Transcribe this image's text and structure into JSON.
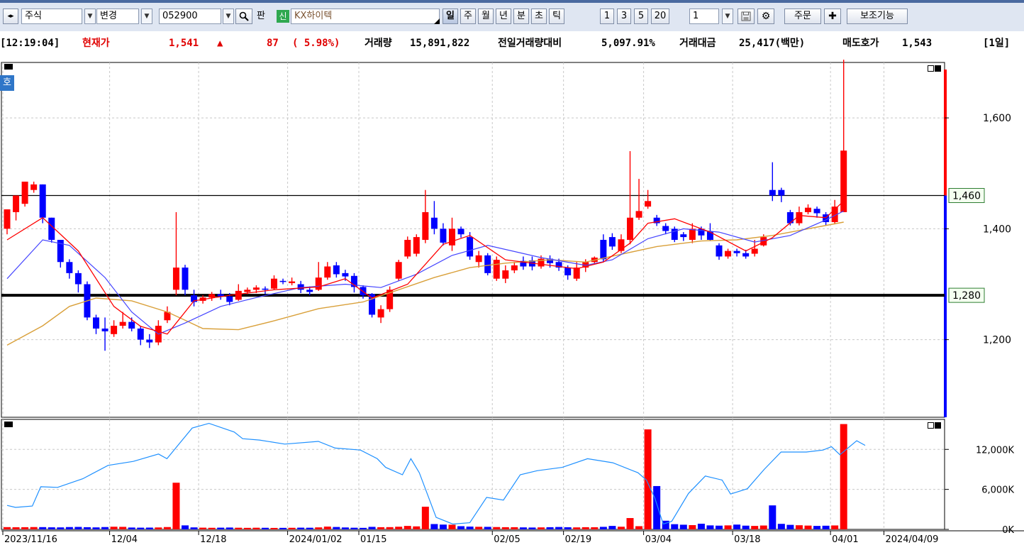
{
  "toolbar": {
    "market_type": "주식",
    "change_label": "변경",
    "stock_code": "052900",
    "pan_label": "판",
    "new_badge": "신",
    "stock_name": "KX하이텍",
    "periods": [
      "일",
      "주",
      "월",
      "년",
      "분",
      "초",
      "틱"
    ],
    "selected_period": "일",
    "intervals": [
      "1",
      "3",
      "5",
      "20"
    ],
    "interval_value": "1",
    "order_label": "주문",
    "aux_label": "보조기능"
  },
  "quote": {
    "time": "[12:19:04]",
    "price_label": "현재가",
    "price": "1,541",
    "arrow": "▲",
    "change": "87",
    "change_pct": "( 5.98%)",
    "volume_label": "거래량",
    "volume": "15,891,822",
    "vol_ratio_label": "전일거래량대비",
    "vol_ratio": "5,097.91%",
    "amount_label": "거래대금",
    "amount": "25,417(백만)",
    "ask_label": "매도호가",
    "ask": "1,543",
    "period_badge": "[1일]"
  },
  "colors": {
    "up": "#ff0000",
    "down": "#0000ff",
    "ma5": "#ff0000",
    "ma10": "#4444ff",
    "ma20": "#d9a03a",
    "vol_ma": "#1e90ff"
  },
  "chart_data": {
    "type": "candlestick",
    "badge": "호",
    "price_axis": {
      "ticks": [
        "1,600",
        "1,400",
        "1,200"
      ],
      "tick_values": [
        1600,
        1400,
        1200
      ],
      "range": [
        1060,
        1700
      ]
    },
    "hlines": [
      {
        "value": 1460,
        "label": "1,460"
      },
      {
        "value": 1280,
        "label": "1,280"
      }
    ],
    "candles": [
      [
        1400,
        1435,
        1435,
        1390
      ],
      [
        1430,
        1460,
        1460,
        1415
      ],
      [
        1445,
        1485,
        1485,
        1440
      ],
      [
        1470,
        1480,
        1485,
        1465
      ],
      [
        1480,
        1420,
        1480,
        1410
      ],
      [
        1420,
        1380,
        1420,
        1375
      ],
      [
        1380,
        1340,
        1380,
        1330
      ],
      [
        1340,
        1320,
        1345,
        1310
      ],
      [
        1320,
        1300,
        1325,
        1285
      ],
      [
        1300,
        1240,
        1305,
        1235
      ],
      [
        1240,
        1220,
        1245,
        1210
      ],
      [
        1220,
        1215,
        1240,
        1180
      ],
      [
        1210,
        1225,
        1235,
        1205
      ],
      [
        1225,
        1232,
        1250,
        1220
      ],
      [
        1232,
        1220,
        1240,
        1215
      ],
      [
        1220,
        1200,
        1225,
        1190
      ],
      [
        1200,
        1195,
        1210,
        1185
      ],
      [
        1195,
        1225,
        1235,
        1190
      ],
      [
        1235,
        1250,
        1260,
        1230
      ],
      [
        1290,
        1330,
        1430,
        1280
      ],
      [
        1330,
        1290,
        1335,
        1280
      ],
      [
        1280,
        1268,
        1290,
        1260
      ],
      [
        1270,
        1276,
        1280,
        1265
      ],
      [
        1276,
        1282,
        1286,
        1270
      ],
      [
        1282,
        1278,
        1290,
        1272
      ],
      [
        1278,
        1268,
        1284,
        1262
      ],
      [
        1272,
        1288,
        1300,
        1270
      ],
      [
        1286,
        1290,
        1294,
        1282
      ],
      [
        1290,
        1294,
        1298,
        1284
      ],
      [
        1292,
        1290,
        1296,
        1282
      ],
      [
        1292,
        1310,
        1316,
        1290
      ],
      [
        1306,
        1304,
        1310,
        1300
      ],
      [
        1302,
        1305,
        1312,
        1298
      ],
      [
        1300,
        1290,
        1306,
        1284
      ],
      [
        1290,
        1286,
        1296,
        1280
      ],
      [
        1290,
        1312,
        1340,
        1288
      ],
      [
        1312,
        1332,
        1340,
        1308
      ],
      [
        1334,
        1318,
        1340,
        1312
      ],
      [
        1320,
        1314,
        1326,
        1306
      ],
      [
        1315,
        1295,
        1320,
        1285
      ],
      [
        1295,
        1280,
        1298,
        1274
      ],
      [
        1282,
        1245,
        1284,
        1240
      ],
      [
        1240,
        1255,
        1262,
        1230
      ],
      [
        1255,
        1290,
        1296,
        1250
      ],
      [
        1310,
        1340,
        1344,
        1306
      ],
      [
        1350,
        1380,
        1386,
        1346
      ],
      [
        1355,
        1385,
        1390,
        1350
      ],
      [
        1380,
        1430,
        1470,
        1374
      ],
      [
        1420,
        1400,
        1450,
        1390
      ],
      [
        1400,
        1375,
        1410,
        1370
      ],
      [
        1370,
        1400,
        1420,
        1360
      ],
      [
        1400,
        1390,
        1404,
        1384
      ],
      [
        1385,
        1350,
        1394,
        1344
      ],
      [
        1340,
        1352,
        1360,
        1330
      ],
      [
        1352,
        1320,
        1356,
        1316
      ],
      [
        1310,
        1344,
        1350,
        1306
      ],
      [
        1310,
        1325,
        1334,
        1302
      ],
      [
        1325,
        1334,
        1340,
        1320
      ],
      [
        1342,
        1332,
        1350,
        1326
      ],
      [
        1343,
        1332,
        1350,
        1325
      ],
      [
        1332,
        1346,
        1352,
        1328
      ],
      [
        1346,
        1338,
        1352,
        1330
      ],
      [
        1340,
        1330,
        1346,
        1324
      ],
      [
        1330,
        1316,
        1334,
        1308
      ],
      [
        1310,
        1330,
        1340,
        1306
      ],
      [
        1330,
        1340,
        1345,
        1322
      ],
      [
        1340,
        1348,
        1350,
        1336
      ],
      [
        1380,
        1345,
        1390,
        1340
      ],
      [
        1385,
        1368,
        1392,
        1362
      ],
      [
        1360,
        1381,
        1390,
        1356
      ],
      [
        1380,
        1420,
        1540,
        1372
      ],
      [
        1420,
        1432,
        1490,
        1416
      ],
      [
        1440,
        1450,
        1470,
        1436
      ],
      [
        1420,
        1410,
        1425,
        1405
      ],
      [
        1405,
        1396,
        1410,
        1390
      ],
      [
        1400,
        1380,
        1404,
        1376
      ],
      [
        1390,
        1385,
        1394,
        1378
      ],
      [
        1380,
        1400,
        1410,
        1374
      ],
      [
        1400,
        1388,
        1404,
        1380
      ],
      [
        1395,
        1380,
        1410,
        1378
      ],
      [
        1370,
        1350,
        1374,
        1344
      ],
      [
        1350,
        1360,
        1364,
        1346
      ],
      [
        1360,
        1356,
        1364,
        1350
      ],
      [
        1356,
        1350,
        1362,
        1346
      ],
      [
        1355,
        1364,
        1380,
        1350
      ],
      [
        1370,
        1385,
        1390,
        1368
      ],
      [
        1470,
        1460,
        1520,
        1450
      ],
      [
        1470,
        1460,
        1474,
        1448
      ],
      [
        1430,
        1410,
        1434,
        1406
      ],
      [
        1410,
        1430,
        1440,
        1406
      ],
      [
        1430,
        1438,
        1444,
        1426
      ],
      [
        1436,
        1428,
        1440,
        1420
      ],
      [
        1426,
        1412,
        1430,
        1406
      ],
      [
        1412,
        1440,
        1452,
        1408
      ],
      [
        1430,
        1541,
        1705,
        1455
      ]
    ],
    "ma_lines": {
      "ma5": [
        [
          0,
          1380
        ],
        [
          4,
          1420
        ],
        [
          8,
          1360
        ],
        [
          12,
          1260
        ],
        [
          15,
          1224
        ],
        [
          18,
          1210
        ],
        [
          21,
          1270
        ],
        [
          25,
          1280
        ],
        [
          30,
          1290
        ],
        [
          35,
          1295
        ],
        [
          38,
          1310
        ],
        [
          41,
          1275
        ],
        [
          45,
          1300
        ],
        [
          49,
          1372
        ],
        [
          52,
          1388
        ],
        [
          56,
          1344
        ],
        [
          60,
          1336
        ],
        [
          64,
          1328
        ],
        [
          67,
          1340
        ],
        [
          70,
          1374
        ],
        [
          72,
          1410
        ],
        [
          75,
          1418
        ],
        [
          79,
          1394
        ],
        [
          83,
          1360
        ],
        [
          86,
          1384
        ],
        [
          89,
          1424
        ],
        [
          92,
          1420
        ],
        [
          94,
          1450
        ]
      ],
      "ma10": [
        [
          0,
          1310
        ],
        [
          4,
          1380
        ],
        [
          7,
          1370
        ],
        [
          11,
          1312
        ],
        [
          14,
          1250
        ],
        [
          17,
          1210
        ],
        [
          20,
          1230
        ],
        [
          24,
          1260
        ],
        [
          28,
          1276
        ],
        [
          33,
          1294
        ],
        [
          38,
          1300
        ],
        [
          42,
          1294
        ],
        [
          46,
          1318
        ],
        [
          50,
          1352
        ],
        [
          54,
          1370
        ],
        [
          60,
          1348
        ],
        [
          65,
          1334
        ],
        [
          68,
          1344
        ],
        [
          72,
          1382
        ],
        [
          76,
          1400
        ],
        [
          80,
          1394
        ],
        [
          84,
          1376
        ],
        [
          88,
          1388
        ],
        [
          92,
          1416
        ],
        [
          94,
          1432
        ]
      ],
      "ma20": [
        [
          0,
          1190
        ],
        [
          4,
          1225
        ],
        [
          7,
          1260
        ],
        [
          10,
          1275
        ],
        [
          14,
          1270
        ],
        [
          18,
          1250
        ],
        [
          22,
          1220
        ],
        [
          26,
          1218
        ],
        [
          30,
          1234
        ],
        [
          35,
          1256
        ],
        [
          40,
          1268
        ],
        [
          44,
          1290
        ],
        [
          48,
          1312
        ],
        [
          52,
          1330
        ],
        [
          56,
          1338
        ],
        [
          61,
          1344
        ],
        [
          65,
          1340
        ],
        [
          69,
          1354
        ],
        [
          73,
          1368
        ],
        [
          78,
          1378
        ],
        [
          82,
          1380
        ],
        [
          86,
          1388
        ],
        [
          90,
          1400
        ],
        [
          94,
          1412
        ]
      ]
    },
    "volume_axis": {
      "ticks": [
        "12,000K",
        "6,000K",
        "0K"
      ],
      "tick_values": [
        12000,
        6000,
        0
      ],
      "range": [
        0,
        16500
      ]
    },
    "volumes": [
      340,
      320,
      330,
      350,
      340,
      310,
      300,
      350,
      370,
      330,
      300,
      350,
      400,
      380,
      280,
      260,
      270,
      290,
      350,
      7000,
      600,
      300,
      260,
      240,
      260,
      280,
      250,
      230,
      250,
      240,
      220,
      230,
      240,
      260,
      250,
      300,
      420,
      360,
      290,
      250,
      230,
      380,
      330,
      340,
      400,
      520,
      450,
      3400,
      800,
      720,
      700,
      480,
      420,
      390,
      380,
      350,
      330,
      330,
      300,
      280,
      300,
      330,
      360,
      320,
      300,
      330,
      320,
      380,
      520,
      400,
      1700,
      480,
      15000,
      6500,
      1300,
      780,
      700,
      640,
      850,
      600,
      560,
      600,
      720,
      560,
      520,
      580,
      3600,
      830,
      680,
      620,
      570,
      520,
      550,
      590,
      15800
    ],
    "volume_ma": [
      [
        0,
        3600
      ],
      [
        1,
        3300
      ],
      [
        3,
        3500
      ],
      [
        4,
        6400
      ],
      [
        6,
        6300
      ],
      [
        9,
        7600
      ],
      [
        12,
        9600
      ],
      [
        15,
        10200
      ],
      [
        18,
        11300
      ],
      [
        19,
        10600
      ],
      [
        22,
        15200
      ],
      [
        24,
        15900
      ],
      [
        27,
        14600
      ],
      [
        28,
        13600
      ],
      [
        30,
        13400
      ],
      [
        33,
        12800
      ],
      [
        37,
        13200
      ],
      [
        39,
        12200
      ],
      [
        42,
        11900
      ],
      [
        44,
        10600
      ],
      [
        45,
        9300
      ],
      [
        47,
        8200
      ],
      [
        48,
        10600
      ],
      [
        49,
        8500
      ],
      [
        51,
        1800
      ],
      [
        53,
        800
      ],
      [
        55,
        1000
      ],
      [
        57,
        4800
      ],
      [
        59,
        4400
      ],
      [
        61,
        8200
      ],
      [
        63,
        8800
      ],
      [
        66,
        9300
      ],
      [
        69,
        10600
      ],
      [
        72,
        10000
      ],
      [
        75,
        8500
      ],
      [
        76,
        7400
      ],
      [
        77,
        4700
      ],
      [
        78,
        800
      ],
      [
        79,
        1200
      ],
      [
        81,
        5400
      ],
      [
        83,
        8000
      ],
      [
        85,
        7400
      ],
      [
        86,
        5300
      ],
      [
        88,
        6100
      ],
      [
        90,
        9000
      ],
      [
        92,
        11600
      ],
      [
        95,
        11600
      ],
      [
        97,
        11900
      ],
      [
        98,
        12400
      ],
      [
        99,
        11200
      ],
      [
        101,
        13300
      ],
      [
        102,
        12600
      ]
    ],
    "date_labels": [
      "2023/11/16",
      "12/04",
      "12/18",
      "2024/01/02",
      "01/15",
      "02/05",
      "02/19",
      "03/04",
      "03/18",
      "04/01",
      "2024/04/09"
    ],
    "date_positions": [
      0,
      12,
      22,
      32,
      40,
      55,
      63,
      72,
      82,
      93,
      99
    ]
  }
}
